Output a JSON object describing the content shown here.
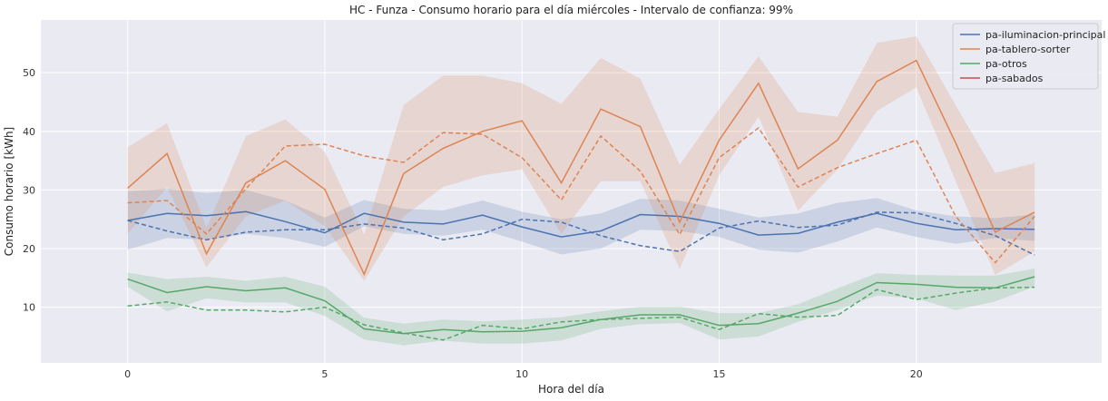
{
  "chart_data": {
    "type": "line",
    "title": "HC - Funza - Consumo horario para el día miércoles - Intervalo de confianza: 99%",
    "xlabel": "Hora del día",
    "ylabel": "Consumo horario [kWh]",
    "xlim": [
      -2.2,
      24.7
    ],
    "ylim": [
      0.5,
      59
    ],
    "xticks": [
      0,
      5,
      10,
      15,
      20
    ],
    "yticks": [
      10,
      20,
      30,
      40,
      50
    ],
    "grid": true,
    "legend_position": "top-right",
    "x": [
      0,
      1,
      2,
      3,
      4,
      5,
      6,
      7,
      8,
      9,
      10,
      11,
      12,
      13,
      14,
      15,
      16,
      17,
      18,
      19,
      20,
      21,
      22,
      23
    ],
    "series": [
      {
        "name": "pa-iluminacion-principal",
        "color": "#4c72b0",
        "values": [
          24.8,
          26,
          25.6,
          26.3,
          24.6,
          22.7,
          26,
          24.5,
          24.2,
          25.7,
          23.7,
          22,
          23,
          25.8,
          25.5,
          24.3,
          22.3,
          22.6,
          24.5,
          26,
          24.3,
          23.2,
          23.4,
          23.3
        ],
        "lower": [
          19.8,
          21.8,
          21.5,
          22.5,
          21.8,
          20.3,
          23.8,
          22.5,
          22.2,
          23.2,
          21.2,
          19,
          20,
          23.2,
          23,
          22,
          19.8,
          19.3,
          21.2,
          23.6,
          22,
          20.8,
          21.8,
          21.3
        ],
        "upper": [
          29.8,
          30.2,
          29.5,
          30,
          28.2,
          25.3,
          28.3,
          26.8,
          26.5,
          28.2,
          26.3,
          25,
          26,
          28.5,
          28.2,
          26.8,
          25.3,
          26,
          27.8,
          28.6,
          26.5,
          25.5,
          25.2,
          25.8
        ],
        "dashed": [
          24.8,
          23,
          21.5,
          22.8,
          23.2,
          23.2,
          24.2,
          23.5,
          21.5,
          22.5,
          25,
          24.5,
          22.2,
          20.5,
          19.5,
          23.5,
          24.7,
          23.6,
          24,
          26.2,
          26.1,
          24.3,
          22.2,
          18.9
        ]
      },
      {
        "name": "pa-tablero-sorter",
        "color": "#dd8452",
        "values": [
          30.3,
          36.2,
          19.1,
          31.2,
          35,
          30.1,
          15.6,
          32.8,
          37.1,
          40,
          41.8,
          31.2,
          43.8,
          40.8,
          24.5,
          38.5,
          48.2,
          33.6,
          38.5,
          48.5,
          52.1,
          38,
          22.8,
          26.2
        ],
        "lower": [
          22.5,
          30.5,
          16.8,
          25.5,
          28.2,
          23.8,
          14.5,
          25.5,
          30.5,
          32.5,
          33.5,
          22.5,
          31.5,
          31.5,
          16.5,
          32.5,
          42.5,
          26.5,
          33.5,
          43.5,
          47.5,
          31.5,
          15.5,
          19.5
        ],
        "upper": [
          37.3,
          41.4,
          23.5,
          39.2,
          42,
          36.5,
          22.4,
          44.5,
          49.5,
          49.5,
          48.2,
          44.7,
          52.5,
          49,
          34.3,
          43.8,
          52.8,
          43.3,
          42.5,
          55.1,
          56.2,
          44.4,
          32.9,
          34.6
        ],
        "dashed": [
          27.8,
          28.2,
          22.5,
          30.2,
          37.5,
          37.8,
          35.8,
          34.7,
          39.8,
          39.5,
          35.5,
          28.3,
          39.2,
          33.2,
          22.4,
          35.5,
          40.6,
          30.5,
          33.8,
          36.2,
          38.5,
          25.5,
          17.6,
          25.5
        ]
      },
      {
        "name": "pa-otros",
        "color": "#55a868",
        "values": [
          14.8,
          12.5,
          13.5,
          12.8,
          13.3,
          11.1,
          6.3,
          5.5,
          6.2,
          5.8,
          5.9,
          6.5,
          7.9,
          8.7,
          8.7,
          6.9,
          7.2,
          9,
          11,
          14.2,
          13.9,
          13.4,
          13.3,
          15.2
        ],
        "lower": [
          13.5,
          9.3,
          11.5,
          10.8,
          10.8,
          8.5,
          4.5,
          3.5,
          4.3,
          3.8,
          3.8,
          4.3,
          6.3,
          7.1,
          7.3,
          4.5,
          5,
          7.5,
          9.5,
          12,
          11.5,
          9.5,
          11,
          13.5
        ],
        "upper": [
          15.9,
          14.8,
          15.2,
          14.5,
          15.2,
          13.5,
          8.2,
          7.2,
          7.9,
          7.6,
          7.9,
          8.3,
          9.3,
          10.1,
          10.1,
          9,
          9,
          10.5,
          13.2,
          15.8,
          15.5,
          15.4,
          15.4,
          16.6
        ],
        "dashed": [
          10.2,
          10.9,
          9.5,
          9.5,
          9.2,
          10,
          7,
          5.6,
          4.4,
          6.9,
          6.3,
          7.5,
          7.9,
          8.1,
          8.3,
          6.2,
          8.9,
          8.3,
          8.6,
          13,
          11.3,
          12.4,
          13.3,
          13.4
        ]
      },
      {
        "name": "pa-sabados",
        "color": "#c44e52"
      }
    ]
  }
}
